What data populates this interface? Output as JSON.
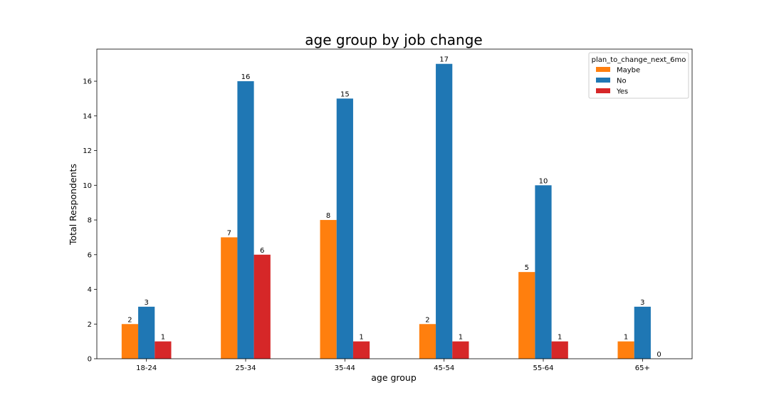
{
  "chart_data": {
    "type": "bar",
    "title": "age group by job change",
    "xlabel": "age group",
    "ylabel": "Total Respondents",
    "categories": [
      "18-24",
      "25-34",
      "35-44",
      "45-54",
      "55-64",
      "65+"
    ],
    "series": [
      {
        "name": "Maybe",
        "color": "#ff7f0e",
        "values": [
          2,
          7,
          8,
          2,
          5,
          1
        ]
      },
      {
        "name": "No",
        "color": "#1f77b4",
        "values": [
          3,
          16,
          15,
          17,
          10,
          3
        ]
      },
      {
        "name": "Yes",
        "color": "#d62728",
        "values": [
          1,
          6,
          1,
          1,
          1,
          0
        ]
      }
    ],
    "yticks": [
      0,
      2,
      4,
      6,
      8,
      10,
      12,
      14,
      16
    ],
    "ylim": [
      0,
      17.85
    ],
    "grid": false,
    "legend": {
      "title": "plan_to_change_next_6mo",
      "position": "top-right"
    }
  }
}
